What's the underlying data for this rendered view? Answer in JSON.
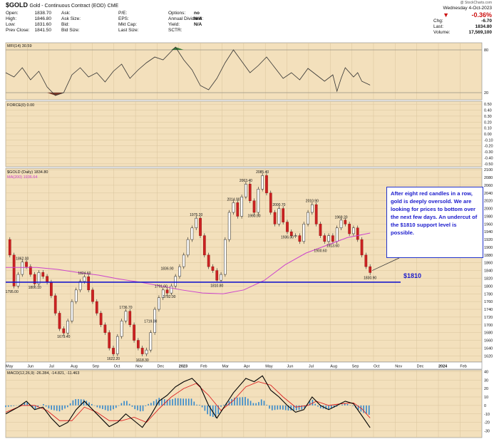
{
  "header": {
    "symbol": "$GOLD",
    "name": "Gold - Continuous Contract (EOD)",
    "exchange": "CME",
    "date": "Wednesday 4-Oct-2023",
    "pct_change": "-0.36%",
    "watermark": "@ StockCharts.com",
    "col1": [
      [
        "Open:",
        "1838.70"
      ],
      [
        "High:",
        "1846.80"
      ],
      [
        "Low:",
        "1831.60"
      ],
      [
        "Prev Close:",
        "1841.50"
      ]
    ],
    "col2": [
      [
        "Ask:",
        ""
      ],
      [
        "Ask Size:",
        ""
      ],
      [
        "Bid:",
        ""
      ],
      [
        "Bid Size:",
        ""
      ]
    ],
    "col3": [
      [
        "P/E:",
        ""
      ],
      [
        "EPS:",
        ""
      ],
      [
        "Mkt Cap:",
        ""
      ],
      [
        "Last Size:",
        ""
      ]
    ],
    "col4": [
      [
        "Options:",
        "no"
      ],
      [
        "Annual Dividend:",
        "N/A"
      ],
      [
        "Yield:",
        "N/A"
      ],
      [
        "SCTR:",
        ""
      ]
    ],
    "right": [
      [
        "Chg:",
        "-6.70"
      ],
      [
        "Last:",
        "1834.80"
      ],
      [
        "Volume:",
        "17,569,100"
      ]
    ]
  },
  "panels": {
    "mfi_label": "MFI(14) 30.59",
    "force_label": "FORCE(0) 0.00",
    "price_label": "$GOLD (Daily) 1834.80",
    "ma_label": "MA(200) 1936.64",
    "macd_label": "MACD(12,26,9) -26.284, -14.821, -11.463"
  },
  "annotation": {
    "text": "After eight red candles in a row, gold is deeply oversold. We are looking for prices to bottom over the next few days. An undercut of the $1810 support level is possible.",
    "level_label": "$1810"
  },
  "colors": {
    "background": "#f3e0bc",
    "price": "#222222",
    "ma": "#cc44cc",
    "support": "#1a1acc",
    "macd": "#000000",
    "signal": "#dd2222",
    "histogram": "#3388cc",
    "mfi_fill": "#7a3a2a",
    "mfi_fill_top": "#3a7a3a"
  },
  "chart_data": {
    "type": "line",
    "title": "$GOLD (Daily) 1834.80",
    "x_ticks": [
      "May",
      "Jun",
      "Jul",
      "Aug",
      "Sep",
      "Oct",
      "Nov",
      "Dec",
      "2023",
      "Feb",
      "Mar",
      "Apr",
      "May",
      "Jun",
      "Jul",
      "Aug",
      "Sep",
      "Oct",
      "Nov",
      "Dec",
      "2024",
      "Feb"
    ],
    "price_y_ticks": [
      1620,
      1640,
      1660,
      1680,
      1700,
      1720,
      1740,
      1760,
      1780,
      1800,
      1820,
      1840,
      1860,
      1880,
      1900,
      1920,
      1940,
      1960,
      1980,
      2000,
      2020,
      2040,
      2060,
      2080,
      2100
    ],
    "price_ylim": [
      1604,
      2104
    ],
    "price_series": [
      {
        "t": 0,
        "v": 1920
      },
      {
        "t": 2,
        "v": 1880
      },
      {
        "t": 4,
        "v": 1800
      },
      {
        "t": 6,
        "v": 1830
      },
      {
        "t": 8,
        "v": 1862
      },
      {
        "t": 10,
        "v": 1850
      },
      {
        "t": 12,
        "v": 1830
      },
      {
        "t": 14,
        "v": 1806
      },
      {
        "t": 16,
        "v": 1835
      },
      {
        "t": 18,
        "v": 1825
      },
      {
        "t": 20,
        "v": 1810
      },
      {
        "t": 22,
        "v": 1775
      },
      {
        "t": 24,
        "v": 1730
      },
      {
        "t": 26,
        "v": 1690
      },
      {
        "t": 28,
        "v": 1679
      },
      {
        "t": 30,
        "v": 1710
      },
      {
        "t": 32,
        "v": 1760
      },
      {
        "t": 34,
        "v": 1790
      },
      {
        "t": 36,
        "v": 1812
      },
      {
        "t": 38,
        "v": 1824
      },
      {
        "t": 40,
        "v": 1790
      },
      {
        "t": 42,
        "v": 1760
      },
      {
        "t": 44,
        "v": 1730
      },
      {
        "t": 46,
        "v": 1700
      },
      {
        "t": 48,
        "v": 1680
      },
      {
        "t": 50,
        "v": 1640
      },
      {
        "t": 52,
        "v": 1625
      },
      {
        "t": 54,
        "v": 1670
      },
      {
        "t": 56,
        "v": 1710
      },
      {
        "t": 58,
        "v": 1735
      },
      {
        "t": 60,
        "v": 1700
      },
      {
        "t": 62,
        "v": 1660
      },
      {
        "t": 64,
        "v": 1640
      },
      {
        "t": 66,
        "v": 1625
      },
      {
        "t": 68,
        "v": 1635
      },
      {
        "t": 70,
        "v": 1680
      },
      {
        "t": 72,
        "v": 1740
      },
      {
        "t": 74,
        "v": 1770
      },
      {
        "t": 76,
        "v": 1790
      },
      {
        "t": 78,
        "v": 1782
      },
      {
        "t": 80,
        "v": 1800
      },
      {
        "t": 82,
        "v": 1825
      },
      {
        "t": 84,
        "v": 1850
      },
      {
        "t": 86,
        "v": 1880
      },
      {
        "t": 88,
        "v": 1920
      },
      {
        "t": 90,
        "v": 1950
      },
      {
        "t": 92,
        "v": 1975
      },
      {
        "t": 94,
        "v": 1930
      },
      {
        "t": 96,
        "v": 1880
      },
      {
        "t": 98,
        "v": 1850
      },
      {
        "t": 100,
        "v": 1840
      },
      {
        "t": 102,
        "v": 1815
      },
      {
        "t": 104,
        "v": 1830
      },
      {
        "t": 106,
        "v": 1920
      },
      {
        "t": 108,
        "v": 1990
      },
      {
        "t": 110,
        "v": 2015
      },
      {
        "t": 112,
        "v": 1980
      },
      {
        "t": 114,
        "v": 2030
      },
      {
        "t": 116,
        "v": 2063
      },
      {
        "t": 118,
        "v": 2020
      },
      {
        "t": 120,
        "v": 1990
      },
      {
        "t": 122,
        "v": 2050
      },
      {
        "t": 124,
        "v": 2085
      },
      {
        "t": 126,
        "v": 2040
      },
      {
        "t": 128,
        "v": 1990
      },
      {
        "t": 130,
        "v": 1960
      },
      {
        "t": 132,
        "v": 2000
      },
      {
        "t": 134,
        "v": 1965
      },
      {
        "t": 136,
        "v": 1940
      },
      {
        "t": 138,
        "v": 1930
      },
      {
        "t": 140,
        "v": 1930
      },
      {
        "t": 142,
        "v": 1915
      },
      {
        "t": 144,
        "v": 1960
      },
      {
        "t": 146,
        "v": 1990
      },
      {
        "t": 148,
        "v": 2010
      },
      {
        "t": 150,
        "v": 1960
      },
      {
        "t": 152,
        "v": 1930
      },
      {
        "t": 154,
        "v": 1915
      },
      {
        "t": 156,
        "v": 1930
      },
      {
        "t": 158,
        "v": 1915
      },
      {
        "t": 160,
        "v": 1950
      },
      {
        "t": 162,
        "v": 1970
      },
      {
        "t": 164,
        "v": 1960
      },
      {
        "t": 166,
        "v": 1935
      },
      {
        "t": 168,
        "v": 1950
      },
      {
        "t": 170,
        "v": 1920
      },
      {
        "t": 172,
        "v": 1880
      },
      {
        "t": 174,
        "v": 1850
      },
      {
        "t": 176,
        "v": 1834.8
      }
    ],
    "ma200": [
      {
        "t": 0,
        "v": 1848
      },
      {
        "t": 15,
        "v": 1848
      },
      {
        "t": 25,
        "v": 1843
      },
      {
        "t": 35,
        "v": 1835
      },
      {
        "t": 45,
        "v": 1828
      },
      {
        "t": 55,
        "v": 1818
      },
      {
        "t": 65,
        "v": 1810
      },
      {
        "t": 75,
        "v": 1800
      },
      {
        "t": 85,
        "v": 1790
      },
      {
        "t": 95,
        "v": 1782
      },
      {
        "t": 105,
        "v": 1780
      },
      {
        "t": 115,
        "v": 1790
      },
      {
        "t": 125,
        "v": 1815
      },
      {
        "t": 135,
        "v": 1855
      },
      {
        "t": 145,
        "v": 1885
      },
      {
        "t": 155,
        "v": 1905
      },
      {
        "t": 165,
        "v": 1925
      },
      {
        "t": 176,
        "v": 1936.64
      }
    ],
    "support_level": 1810,
    "price_labels": [
      {
        "t": 3,
        "v": 1795.0,
        "text": "1795.00",
        "pos": "below"
      },
      {
        "t": 8,
        "v": 1862.0,
        "text": "1862.00",
        "pos": "above"
      },
      {
        "t": 14,
        "v": 1806.1,
        "text": "1806.10",
        "pos": "below"
      },
      {
        "t": 38,
        "v": 1824.6,
        "text": "1824.60",
        "pos": "above"
      },
      {
        "t": 28,
        "v": 1679.4,
        "text": "1679.40",
        "pos": "below"
      },
      {
        "t": 52,
        "v": 1622.2,
        "text": "1622.20",
        "pos": "below"
      },
      {
        "t": 58,
        "v": 1736.7,
        "text": "1736.70",
        "pos": "above"
      },
      {
        "t": 66,
        "v": 1618.3,
        "text": "1618.30",
        "pos": "below"
      },
      {
        "t": 70,
        "v": 1719.0,
        "text": "1719.00",
        "pos": "below"
      },
      {
        "t": 75,
        "v": 1791.0,
        "text": "1791.00",
        "pos": "above"
      },
      {
        "t": 78,
        "v": 1836.9,
        "text": "1836.90",
        "pos": "above"
      },
      {
        "t": 79,
        "v": 1782.0,
        "text": "1782.00",
        "pos": "below"
      },
      {
        "t": 92,
        "v": 1975.2,
        "text": "1975.20",
        "pos": "above"
      },
      {
        "t": 102,
        "v": 1810.8,
        "text": "1810.80",
        "pos": "below"
      },
      {
        "t": 110,
        "v": 2014.9,
        "text": "2014.90",
        "pos": "above"
      },
      {
        "t": 116,
        "v": 2063.4,
        "text": "2063.40",
        "pos": "above"
      },
      {
        "t": 120,
        "v": 1990.9,
        "text": "1990.90",
        "pos": "below"
      },
      {
        "t": 124,
        "v": 2085.4,
        "text": "2085.40",
        "pos": "above"
      },
      {
        "t": 132,
        "v": 2000.7,
        "text": "2000.70",
        "pos": "above"
      },
      {
        "t": 136,
        "v": 1936.0,
        "text": "1936.00",
        "pos": "below"
      },
      {
        "t": 148,
        "v": 2010.9,
        "text": "2010.90",
        "pos": "above"
      },
      {
        "t": 152,
        "v": 1900.6,
        "text": "1900.60",
        "pos": "below"
      },
      {
        "t": 158,
        "v": 1913.6,
        "text": "1913.60",
        "pos": "below"
      },
      {
        "t": 162,
        "v": 1969.2,
        "text": "1969.20",
        "pos": "above"
      },
      {
        "t": 176,
        "v": 1830.9,
        "text": "1830.90",
        "pos": "below"
      }
    ],
    "mfi_y_ticks": [
      20,
      80
    ],
    "mfi_ylim": [
      10,
      90
    ],
    "mfi_series": [
      {
        "t": 0,
        "v": 48
      },
      {
        "t": 4,
        "v": 42
      },
      {
        "t": 8,
        "v": 55
      },
      {
        "t": 12,
        "v": 38
      },
      {
        "t": 16,
        "v": 50
      },
      {
        "t": 20,
        "v": 28
      },
      {
        "t": 24,
        "v": 16
      },
      {
        "t": 28,
        "v": 20
      },
      {
        "t": 32,
        "v": 45
      },
      {
        "t": 36,
        "v": 55
      },
      {
        "t": 40,
        "v": 42
      },
      {
        "t": 44,
        "v": 48
      },
      {
        "t": 48,
        "v": 35
      },
      {
        "t": 52,
        "v": 50
      },
      {
        "t": 56,
        "v": 60
      },
      {
        "t": 60,
        "v": 40
      },
      {
        "t": 64,
        "v": 52
      },
      {
        "t": 68,
        "v": 62
      },
      {
        "t": 72,
        "v": 70
      },
      {
        "t": 76,
        "v": 66
      },
      {
        "t": 80,
        "v": 78
      },
      {
        "t": 82,
        "v": 84
      },
      {
        "t": 86,
        "v": 66
      },
      {
        "t": 90,
        "v": 52
      },
      {
        "t": 94,
        "v": 30
      },
      {
        "t": 98,
        "v": 24
      },
      {
        "t": 102,
        "v": 40
      },
      {
        "t": 106,
        "v": 62
      },
      {
        "t": 110,
        "v": 80
      },
      {
        "t": 114,
        "v": 64
      },
      {
        "t": 118,
        "v": 48
      },
      {
        "t": 122,
        "v": 58
      },
      {
        "t": 126,
        "v": 70
      },
      {
        "t": 130,
        "v": 55
      },
      {
        "t": 134,
        "v": 40
      },
      {
        "t": 138,
        "v": 48
      },
      {
        "t": 142,
        "v": 38
      },
      {
        "t": 146,
        "v": 54
      },
      {
        "t": 150,
        "v": 45
      },
      {
        "t": 154,
        "v": 36
      },
      {
        "t": 158,
        "v": 45
      },
      {
        "t": 160,
        "v": 22
      },
      {
        "t": 162,
        "v": 40
      },
      {
        "t": 164,
        "v": 55
      },
      {
        "t": 168,
        "v": 42
      },
      {
        "t": 170,
        "v": 48
      },
      {
        "t": 172,
        "v": 36
      },
      {
        "t": 176,
        "v": 30.59
      }
    ],
    "force_y_ticks": [
      -0.5,
      -0.4,
      -0.3,
      -0.2,
      -0.1,
      0.0,
      0.1,
      0.2,
      0.3,
      0.4,
      0.5
    ],
    "macd_y_ticks": [
      -30,
      -20,
      -10,
      0,
      10,
      20,
      30,
      40
    ],
    "macd_ylim": [
      -38,
      42
    ],
    "macd_series": [
      {
        "t": 0,
        "v": -10
      },
      {
        "t": 6,
        "v": -2
      },
      {
        "t": 10,
        "v": 5
      },
      {
        "t": 14,
        "v": -5
      },
      {
        "t": 18,
        "v": -2
      },
      {
        "t": 22,
        "v": -15
      },
      {
        "t": 26,
        "v": -25
      },
      {
        "t": 30,
        "v": -20
      },
      {
        "t": 34,
        "v": -5
      },
      {
        "t": 38,
        "v": 5
      },
      {
        "t": 42,
        "v": -5
      },
      {
        "t": 46,
        "v": -15
      },
      {
        "t": 50,
        "v": -25
      },
      {
        "t": 54,
        "v": -20
      },
      {
        "t": 58,
        "v": -10
      },
      {
        "t": 62,
        "v": -18
      },
      {
        "t": 66,
        "v": -26
      },
      {
        "t": 70,
        "v": -12
      },
      {
        "t": 74,
        "v": 5
      },
      {
        "t": 78,
        "v": 12
      },
      {
        "t": 82,
        "v": 22
      },
      {
        "t": 86,
        "v": 28
      },
      {
        "t": 90,
        "v": 32
      },
      {
        "t": 94,
        "v": 22
      },
      {
        "t": 98,
        "v": 0
      },
      {
        "t": 102,
        "v": -15
      },
      {
        "t": 106,
        "v": 0
      },
      {
        "t": 110,
        "v": 15
      },
      {
        "t": 116,
        "v": 32
      },
      {
        "t": 120,
        "v": 28
      },
      {
        "t": 124,
        "v": 35
      },
      {
        "t": 128,
        "v": 18
      },
      {
        "t": 132,
        "v": 10
      },
      {
        "t": 136,
        "v": 0
      },
      {
        "t": 140,
        "v": -8
      },
      {
        "t": 144,
        "v": -5
      },
      {
        "t": 148,
        "v": 10
      },
      {
        "t": 152,
        "v": 0
      },
      {
        "t": 156,
        "v": -5
      },
      {
        "t": 160,
        "v": 0
      },
      {
        "t": 164,
        "v": 5
      },
      {
        "t": 168,
        "v": 2
      },
      {
        "t": 172,
        "v": -12
      },
      {
        "t": 176,
        "v": -26.284
      }
    ],
    "signal_series": [
      {
        "t": 0,
        "v": -8
      },
      {
        "t": 8,
        "v": 0
      },
      {
        "t": 14,
        "v": 0
      },
      {
        "t": 20,
        "v": -6
      },
      {
        "t": 26,
        "v": -18
      },
      {
        "t": 32,
        "v": -18
      },
      {
        "t": 38,
        "v": -2
      },
      {
        "t": 44,
        "v": -8
      },
      {
        "t": 50,
        "v": -18
      },
      {
        "t": 56,
        "v": -18
      },
      {
        "t": 62,
        "v": -14
      },
      {
        "t": 68,
        "v": -20
      },
      {
        "t": 74,
        "v": -4
      },
      {
        "t": 80,
        "v": 10
      },
      {
        "t": 86,
        "v": 20
      },
      {
        "t": 92,
        "v": 26
      },
      {
        "t": 98,
        "v": 12
      },
      {
        "t": 104,
        "v": -6
      },
      {
        "t": 110,
        "v": 6
      },
      {
        "t": 116,
        "v": 22
      },
      {
        "t": 122,
        "v": 28
      },
      {
        "t": 128,
        "v": 24
      },
      {
        "t": 134,
        "v": 10
      },
      {
        "t": 140,
        "v": -2
      },
      {
        "t": 146,
        "v": 0
      },
      {
        "t": 150,
        "v": 5
      },
      {
        "t": 156,
        "v": 0
      },
      {
        "t": 162,
        "v": 2
      },
      {
        "t": 168,
        "v": 3
      },
      {
        "t": 172,
        "v": -4
      },
      {
        "t": 176,
        "v": -14.821
      }
    ]
  }
}
